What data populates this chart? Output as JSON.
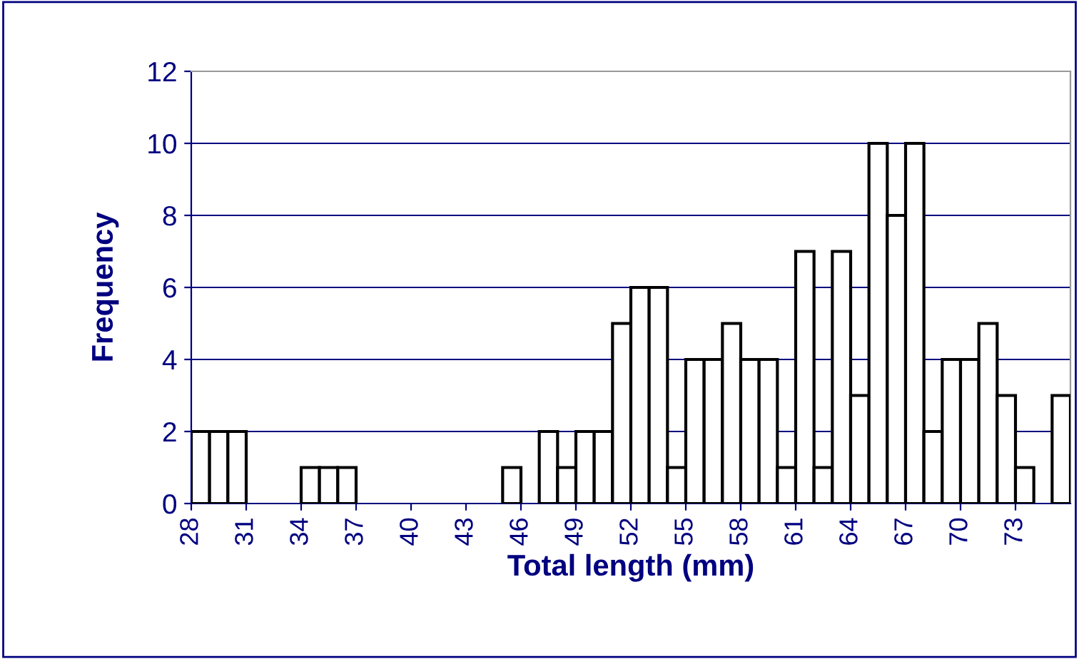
{
  "chart_data": {
    "type": "histogram",
    "xlabel": "Total length (mm)",
    "ylabel": "Frequency",
    "bins": [
      28,
      29,
      30,
      31,
      32,
      33,
      34,
      35,
      36,
      37,
      38,
      39,
      40,
      41,
      42,
      43,
      44,
      45,
      46,
      47,
      48,
      49,
      50,
      51,
      52,
      53,
      54,
      55,
      56,
      57,
      58,
      59,
      60,
      61,
      62,
      63,
      64,
      65,
      66,
      67,
      68,
      69,
      70,
      71,
      72,
      73,
      74,
      75,
      76
    ],
    "values": [
      2,
      2,
      2,
      0,
      0,
      0,
      1,
      1,
      1,
      0,
      0,
      0,
      0,
      0,
      0,
      0,
      0,
      1,
      0,
      2,
      1,
      2,
      2,
      5,
      6,
      6,
      1,
      4,
      4,
      5,
      4,
      4,
      1,
      7,
      1,
      7,
      3,
      10,
      8,
      10,
      2,
      4,
      4,
      5,
      3,
      1,
      0,
      3
    ],
    "color": "#ffffff",
    "xlim": [
      28,
      76
    ],
    "xticks": [
      28,
      31,
      34,
      37,
      40,
      43,
      46,
      49,
      52,
      55,
      58,
      61,
      64,
      67,
      70,
      73
    ],
    "ylim": [
      0,
      12
    ],
    "yticks": [
      0,
      2,
      4,
      6,
      8,
      10,
      12
    ],
    "grid": "y"
  }
}
